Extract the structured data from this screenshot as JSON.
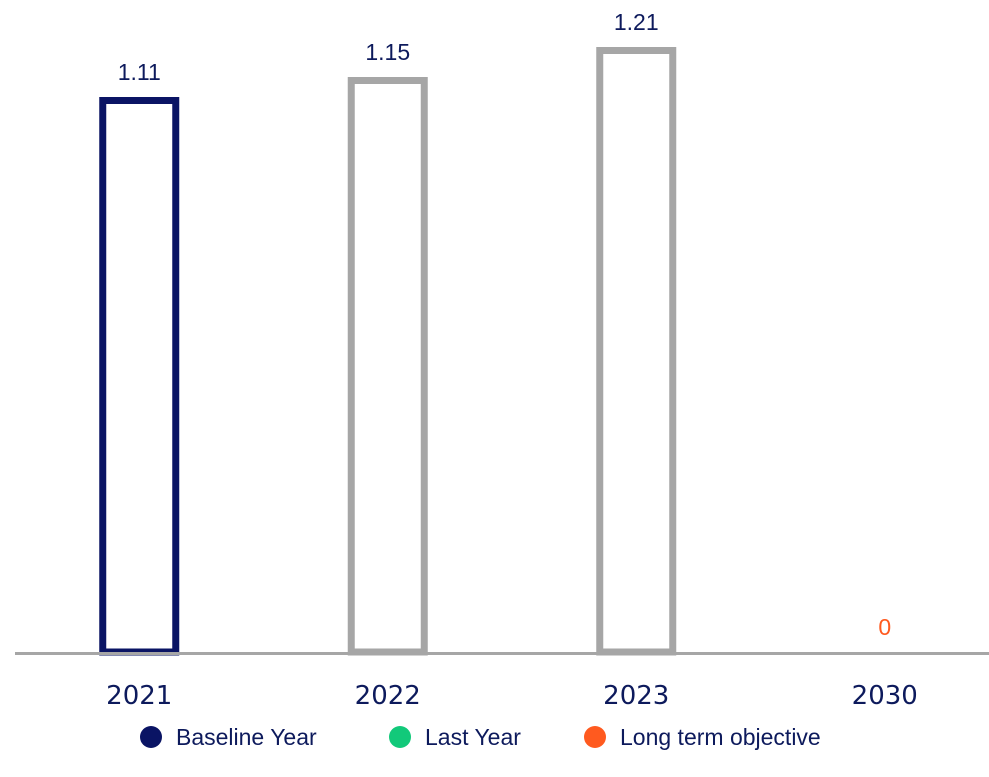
{
  "chart_data": {
    "type": "bar",
    "categories": [
      "2021",
      "2022",
      "2023",
      "2030"
    ],
    "values": [
      1.11,
      1.15,
      1.21,
      0
    ],
    "value_labels": [
      "1.11",
      "1.15",
      "1.21",
      "0"
    ],
    "bar_roles": [
      "baseline",
      "other",
      "other",
      "objective"
    ],
    "title": "",
    "xlabel": "",
    "ylabel": "",
    "ylim": [
      0,
      1.25
    ],
    "grid": false,
    "legend_position": "bottom-center",
    "legend": [
      {
        "label": "Baseline Year",
        "color": "#0a1464",
        "role": "baseline"
      },
      {
        "label": "Last Year",
        "color": "#12c97a",
        "role": "last"
      },
      {
        "label": "Long term objective",
        "color": "#ff5a1f",
        "role": "objective"
      }
    ],
    "colors": {
      "baseline": "#0a1464",
      "other": "#a6a6a6",
      "objective": "#ff5a1f",
      "axis": "#a6a6a6",
      "text": "#0d1a5c"
    }
  }
}
